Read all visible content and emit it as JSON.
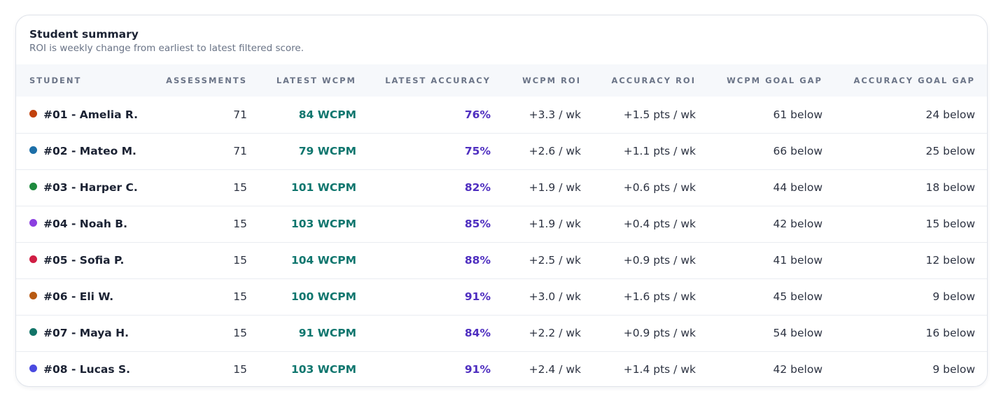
{
  "card": {
    "title": "Student summary",
    "subtitle": "ROI is weekly change from earliest to latest filtered score."
  },
  "columns": {
    "student": "STUDENT",
    "assessments": "ASSESSMENTS",
    "latest_wcpm": "LATEST WCPM",
    "latest_accuracy": "LATEST ACCURACY",
    "wcpm_roi": "WCPM ROI",
    "accuracy_roi": "ACCURACY ROI",
    "wcpm_goal_gap": "WCPM GOAL GAP",
    "accuracy_goal_gap": "ACCURACY GOAL GAP"
  },
  "rows": [
    {
      "student": "#01 - Amelia R.",
      "color": "#c2410c",
      "assessments": "71",
      "latest_wcpm": "84 WCPM",
      "latest_accuracy": "76%",
      "wcpm_roi": "+3.3 / wk",
      "accuracy_roi": "+1.5 pts / wk",
      "wcpm_goal_gap": "61 below",
      "accuracy_goal_gap": "24 below"
    },
    {
      "student": "#02 - Mateo M.",
      "color": "#1d6fa8",
      "assessments": "71",
      "latest_wcpm": "79 WCPM",
      "latest_accuracy": "75%",
      "wcpm_roi": "+2.6 / wk",
      "accuracy_roi": "+1.1 pts / wk",
      "wcpm_goal_gap": "66 below",
      "accuracy_goal_gap": "25 below"
    },
    {
      "student": "#03 - Harper C.",
      "color": "#1e8a3e",
      "assessments": "15",
      "latest_wcpm": "101 WCPM",
      "latest_accuracy": "82%",
      "wcpm_roi": "+1.9 / wk",
      "accuracy_roi": "+0.6 pts / wk",
      "wcpm_goal_gap": "44 below",
      "accuracy_goal_gap": "18 below"
    },
    {
      "student": "#04 - Noah B.",
      "color": "#8b3fe0",
      "assessments": "15",
      "latest_wcpm": "103 WCPM",
      "latest_accuracy": "85%",
      "wcpm_roi": "+1.9 / wk",
      "accuracy_roi": "+0.4 pts / wk",
      "wcpm_goal_gap": "42 below",
      "accuracy_goal_gap": "15 below"
    },
    {
      "student": "#05 - Sofia P.",
      "color": "#d01e44",
      "assessments": "15",
      "latest_wcpm": "104 WCPM",
      "latest_accuracy": "88%",
      "wcpm_roi": "+2.5 / wk",
      "accuracy_roi": "+0.9 pts / wk",
      "wcpm_goal_gap": "41 below",
      "accuracy_goal_gap": "12 below"
    },
    {
      "student": "#06 - Eli W.",
      "color": "#b85a12",
      "assessments": "15",
      "latest_wcpm": "100 WCPM",
      "latest_accuracy": "91%",
      "wcpm_roi": "+3.0 / wk",
      "accuracy_roi": "+1.6 pts / wk",
      "wcpm_goal_gap": "45 below",
      "accuracy_goal_gap": "9 below"
    },
    {
      "student": "#07 - Maya H.",
      "color": "#127468",
      "assessments": "15",
      "latest_wcpm": "91 WCPM",
      "latest_accuracy": "84%",
      "wcpm_roi": "+2.2 / wk",
      "accuracy_roi": "+0.9 pts / wk",
      "wcpm_goal_gap": "54 below",
      "accuracy_goal_gap": "16 below"
    },
    {
      "student": "#08 - Lucas S.",
      "color": "#4a4ae0",
      "assessments": "15",
      "latest_wcpm": "103 WCPM",
      "latest_accuracy": "91%",
      "wcpm_roi": "+2.4 / wk",
      "accuracy_roi": "+1.4 pts / wk",
      "wcpm_goal_gap": "42 below",
      "accuracy_goal_gap": "9 below"
    }
  ]
}
